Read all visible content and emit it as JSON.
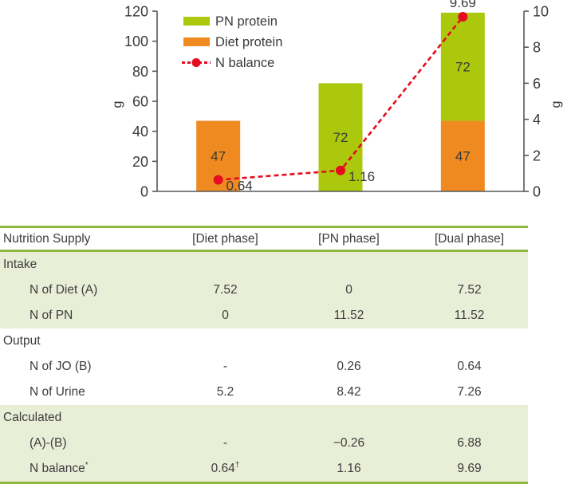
{
  "chart_data": {
    "type": "bar",
    "subtype": "stacked-bar-with-line",
    "categories": [
      "Diet phase",
      "PN phase",
      "Dual phase"
    ],
    "bar_series": [
      {
        "name": "Diet protein",
        "color": "#ef8a21",
        "values": [
          47,
          0,
          47
        ]
      },
      {
        "name": "PN protein",
        "color": "#abc80d",
        "values": [
          0,
          72,
          72
        ]
      }
    ],
    "line_series": {
      "name": "N balance",
      "color": "#e60b1e",
      "axis": "right",
      "values": [
        0.64,
        1.16,
        9.69
      ],
      "point_labels": [
        "0.64",
        "1.16",
        "9.69"
      ]
    },
    "left_axis": {
      "label": "g",
      "min": 0,
      "max": 120,
      "ticks": [
        0,
        20,
        40,
        60,
        80,
        100,
        120
      ]
    },
    "right_axis": {
      "label": "g",
      "min": 0,
      "max": 10,
      "ticks": [
        0,
        2,
        4,
        6,
        8,
        10
      ]
    },
    "legend": [
      {
        "label": "PN protein",
        "swatch": "bar",
        "color": "#abc80d"
      },
      {
        "label": "Diet protein",
        "swatch": "bar",
        "color": "#ef8a21"
      },
      {
        "label": "N balance",
        "swatch": "dashed-line-dot",
        "color": "#e60b1e"
      }
    ],
    "legend_position": "top-left-inside",
    "grid": false,
    "title": "",
    "xlabel": ""
  },
  "table": {
    "accent_color": "#8fb93e",
    "shaded_row_color": "#e9eed7",
    "column_headers": [
      "Nutrition Supply",
      "[Diet phase]",
      "[PN phase]",
      "[Dual phase]"
    ],
    "sections": [
      {
        "label": "Intake",
        "shaded": true,
        "rows": [
          {
            "label": "N of Diet (A)",
            "cells": [
              "7.52",
              "0",
              "7.52"
            ]
          },
          {
            "label": "N of PN",
            "cells": [
              "0",
              "11.52",
              "11.52"
            ]
          }
        ]
      },
      {
        "label": "Output",
        "shaded": false,
        "rows": [
          {
            "label": "N of JO (B)",
            "cells": [
              "-",
              "0.26",
              "0.64"
            ]
          },
          {
            "label": "N of Urine",
            "cells": [
              "5.2",
              "8.42",
              "7.26"
            ]
          }
        ]
      },
      {
        "label": "Calculated",
        "shaded": true,
        "rows": [
          {
            "label": "(A)-(B)",
            "cells": [
              "-",
              "−0.26",
              "6.88"
            ]
          },
          {
            "label": "N balance",
            "label_sup": "*",
            "cells": [
              {
                "text": "0.64",
                "sup": "†"
              },
              "1.16",
              "9.69"
            ]
          }
        ]
      }
    ]
  }
}
